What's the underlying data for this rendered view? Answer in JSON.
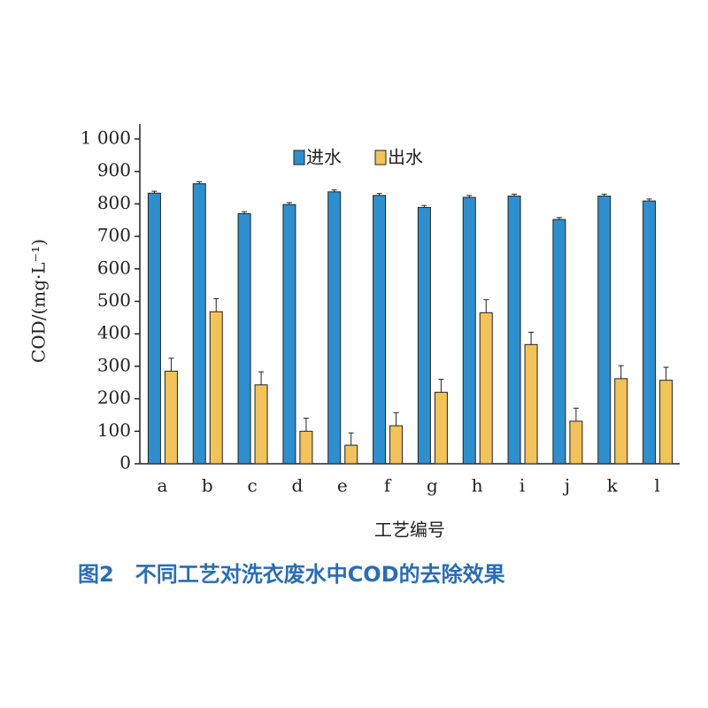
{
  "chart_data": {
    "type": "bar",
    "caption": "图2　不同工艺对洗衣废水中COD的去除效果",
    "x_label": "工艺编号",
    "y_label": "COD/(mg·L⁻¹)",
    "categories": [
      "a",
      "b",
      "c",
      "d",
      "e",
      "f",
      "g",
      "h",
      "i",
      "j",
      "k",
      "l"
    ],
    "series": [
      {
        "name": "进水",
        "color": "#2f8fce",
        "values": [
          833,
          862,
          770,
          798,
          837,
          826,
          789,
          820,
          824,
          752,
          824,
          809
        ],
        "errors": [
          6,
          6,
          6,
          6,
          6,
          6,
          6,
          6,
          6,
          6,
          6,
          6
        ]
      },
      {
        "name": "出水",
        "color": "#f2c35a",
        "values": [
          285,
          468,
          243,
          100,
          57,
          117,
          220,
          465,
          367,
          131,
          262,
          257
        ],
        "errors": [
          40,
          40,
          40,
          40,
          38,
          40,
          40,
          40,
          38,
          40,
          40,
          40
        ]
      }
    ],
    "ylim": [
      0,
      1000
    ],
    "yticks": [
      0,
      100,
      200,
      300,
      400,
      500,
      600,
      700,
      800,
      900,
      {
        "value": 1000,
        "label": "1 000"
      }
    ],
    "legend": "top"
  }
}
